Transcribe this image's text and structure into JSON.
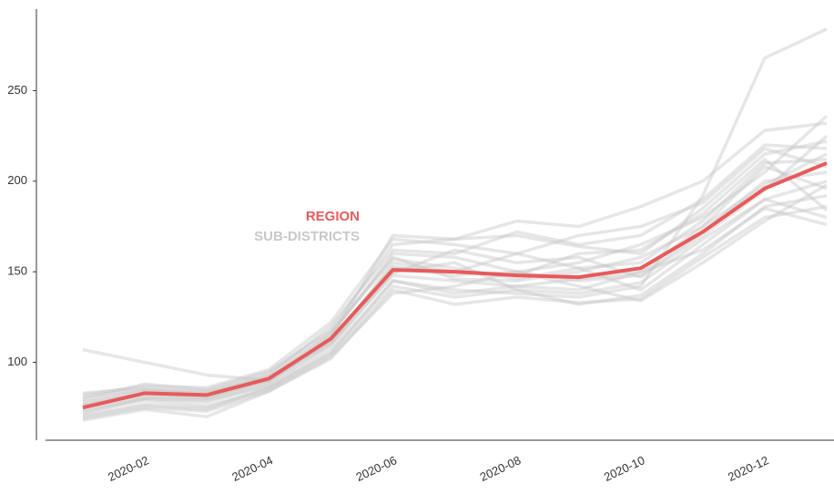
{
  "chart_data": {
    "type": "line",
    "categories": [
      null,
      "2020-02",
      null,
      "2020-04",
      null,
      "2020-06",
      null,
      "2020-08",
      null,
      "2020-10",
      null,
      "2020-12",
      null
    ],
    "series": [
      {
        "name": "REGION",
        "color": "#e85a5a",
        "values": [
          75,
          83,
          82,
          91,
          113,
          151,
          150,
          148,
          147,
          152,
          172,
          196,
          210
        ]
      }
    ],
    "sub_districts": {
      "name": "SUB-DISTRICTS",
      "color": "#c8c8c8",
      "series": [
        [
          107,
          100,
          93,
          90,
          110,
          148,
          145,
          142,
          140,
          150,
          175,
          198,
          215
        ],
        [
          70,
          76,
          74,
          86,
          105,
          145,
          140,
          138,
          136,
          142,
          192,
          268,
          284
        ],
        [
          80,
          88,
          85,
          95,
          118,
          165,
          168,
          178,
          175,
          186,
          200,
          228,
          232
        ],
        [
          72,
          80,
          78,
          88,
          110,
          155,
          150,
          160,
          152,
          140,
          165,
          190,
          200
        ],
        [
          83,
          86,
          84,
          92,
          115,
          160,
          158,
          150,
          155,
          165,
          180,
          205,
          236
        ],
        [
          68,
          74,
          70,
          84,
          102,
          140,
          132,
          136,
          133,
          135,
          158,
          180,
          186
        ],
        [
          76,
          82,
          80,
          89,
          114,
          170,
          168,
          170,
          164,
          160,
          185,
          215,
          222
        ],
        [
          78,
          84,
          83,
          91,
          116,
          158,
          146,
          145,
          150,
          158,
          175,
          208,
          196
        ],
        [
          74,
          80,
          79,
          87,
          108,
          150,
          155,
          140,
          138,
          144,
          168,
          190,
          180
        ],
        [
          81,
          85,
          82,
          93,
          120,
          162,
          160,
          172,
          165,
          170,
          190,
          220,
          218
        ],
        [
          73,
          79,
          76,
          86,
          106,
          145,
          138,
          142,
          146,
          150,
          162,
          185,
          176
        ],
        [
          77,
          83,
          81,
          90,
          112,
          153,
          148,
          150,
          145,
          148,
          172,
          200,
          205
        ],
        [
          79,
          85,
          84,
          94,
          117,
          157,
          152,
          146,
          152,
          155,
          178,
          210,
          212
        ],
        [
          71,
          77,
          75,
          85,
          104,
          142,
          136,
          140,
          132,
          137,
          160,
          186,
          192
        ],
        [
          75,
          81,
          80,
          90,
          113,
          149,
          162,
          155,
          158,
          147,
          170,
          195,
          225
        ],
        [
          82,
          87,
          86,
          96,
          122,
          168,
          165,
          160,
          170,
          175,
          188,
          218,
          208
        ],
        [
          69,
          75,
          73,
          84,
          103,
          138,
          142,
          150,
          142,
          134,
          155,
          178,
          198
        ],
        [
          76,
          83,
          82,
          92,
          111,
          152,
          150,
          148,
          160,
          162,
          182,
          212,
          184
        ]
      ]
    },
    "ylim": [
      57,
      295
    ],
    "yticks": [
      100,
      150,
      200,
      250
    ]
  }
}
